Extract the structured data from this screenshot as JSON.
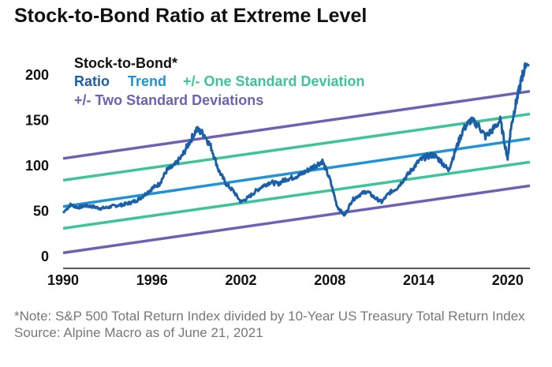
{
  "title": "Stock-to-Bond Ratio at Extreme Level",
  "notes": {
    "note": "*Note: S&P 500 Total Return Index divided by 10-Year US Treasury Total Return Index",
    "source": "Source: Alpine Macro as of June 21, 2021"
  },
  "colors": {
    "ratio": "#1b5fa8",
    "trend": "#1f93d6",
    "one_sd": "#3fc39a",
    "two_sd": "#6b62b5",
    "axis": "#222222"
  },
  "chart_data": {
    "type": "line",
    "xlim": [
      1990,
      2021.5
    ],
    "ylim": [
      0,
      220
    ],
    "xticks": [
      "1990",
      "1996",
      "2002",
      "2008",
      "2014",
      "2020"
    ],
    "yticks": [
      "0",
      "50",
      "100",
      "150",
      "200"
    ],
    "grid": false,
    "legend": {
      "placement": "top-left",
      "entries": {
        "ratio_line1": "Stock-to-Bond*",
        "ratio_line2": "Ratio",
        "trend": "Trend",
        "one_sd": "+/- One Standard Deviation",
        "two_sd": "+/- Two Standard Deviations"
      }
    },
    "series": [
      {
        "name": "Stock-to-Bond* Ratio",
        "x": [
          1990.0,
          1990.5,
          1991.0,
          1991.5,
          1992.0,
          1992.5,
          1993.0,
          1993.5,
          1994.0,
          1994.5,
          1995.0,
          1995.5,
          1996.0,
          1996.5,
          1997.0,
          1997.5,
          1998.0,
          1998.5,
          1999.0,
          1999.5,
          2000.0,
          2000.5,
          2001.0,
          2001.5,
          2002.0,
          2002.5,
          2003.0,
          2003.5,
          2004.0,
          2004.5,
          2005.0,
          2005.5,
          2006.0,
          2006.5,
          2007.0,
          2007.5,
          2008.0,
          2008.5,
          2009.0,
          2009.5,
          2010.0,
          2010.5,
          2011.0,
          2011.5,
          2012.0,
          2012.5,
          2013.0,
          2013.5,
          2014.0,
          2014.5,
          2015.0,
          2015.5,
          2016.0,
          2016.5,
          2017.0,
          2017.5,
          2018.0,
          2018.5,
          2019.0,
          2019.5,
          2020.0,
          2020.2,
          2020.5,
          2020.8,
          2021.0,
          2021.3,
          2021.45
        ],
        "values": [
          48,
          57,
          54,
          56,
          55,
          53,
          54,
          56,
          57,
          59,
          62,
          68,
          75,
          80,
          95,
          100,
          110,
          125,
          140,
          135,
          120,
          95,
          80,
          72,
          60,
          65,
          72,
          78,
          82,
          80,
          85,
          87,
          90,
          95,
          100,
          105,
          85,
          55,
          45,
          62,
          68,
          72,
          65,
          60,
          70,
          75,
          85,
          95,
          105,
          110,
          112,
          105,
          95,
          118,
          140,
          150,
          145,
          132,
          140,
          150,
          108,
          140,
          165,
          185,
          200,
          212,
          210
        ]
      },
      {
        "name": "Trend",
        "x": [
          1990,
          2021.5
        ],
        "values": [
          55,
          130
        ]
      },
      {
        "name": "+1 SD",
        "x": [
          1990,
          2021.5
        ],
        "values": [
          84,
          157
        ]
      },
      {
        "name": "-1 SD",
        "x": [
          1990,
          2021.5
        ],
        "values": [
          31,
          104
        ]
      },
      {
        "name": "+2 SD",
        "x": [
          1990,
          2021.5
        ],
        "values": [
          108,
          182
        ]
      },
      {
        "name": "-2 SD",
        "x": [
          1990,
          2021.5
        ],
        "values": [
          4,
          78
        ]
      }
    ]
  }
}
